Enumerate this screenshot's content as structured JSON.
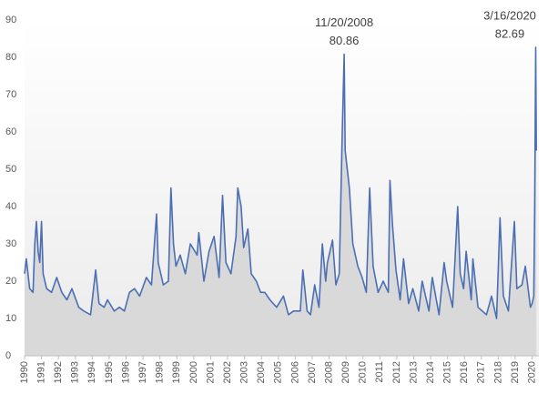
{
  "chart_data": {
    "type": "line",
    "x": [
      1990.0,
      1990.1,
      1990.3,
      1990.5,
      1990.6,
      1990.7,
      1990.8,
      1990.9,
      1991.0,
      1991.1,
      1991.3,
      1991.6,
      1991.9,
      1992.2,
      1992.5,
      1992.8,
      1993.2,
      1993.5,
      1993.9,
      1994.2,
      1994.4,
      1994.7,
      1994.9,
      1995.3,
      1995.6,
      1995.9,
      1996.2,
      1996.5,
      1996.8,
      1997.2,
      1997.5,
      1997.8,
      1997.9,
      1998.2,
      1998.5,
      1998.65,
      1998.8,
      1998.95,
      1999.2,
      1999.5,
      1999.8,
      2000.2,
      2000.3,
      2000.6,
      2000.9,
      2001.2,
      2001.5,
      2001.7,
      2001.9,
      2002.2,
      2002.5,
      2002.6,
      2002.8,
      2002.95,
      2003.2,
      2003.4,
      2003.7,
      2003.95,
      2004.2,
      2004.5,
      2004.9,
      2005.3,
      2005.6,
      2005.9,
      2006.3,
      2006.45,
      2006.7,
      2006.9,
      2007.15,
      2007.4,
      2007.6,
      2007.8,
      2007.9,
      2008.2,
      2008.4,
      2008.6,
      2008.78,
      2008.89,
      2008.95,
      2009.2,
      2009.4,
      2009.7,
      2009.95,
      2010.2,
      2010.4,
      2010.6,
      2010.9,
      2011.2,
      2011.5,
      2011.6,
      2011.75,
      2011.95,
      2012.2,
      2012.4,
      2012.7,
      2012.95,
      2013.3,
      2013.5,
      2013.9,
      2014.1,
      2014.5,
      2014.8,
      2014.95,
      2015.3,
      2015.6,
      2015.75,
      2015.95,
      2016.1,
      2016.4,
      2016.5,
      2016.8,
      2017.3,
      2017.6,
      2017.9,
      2018.1,
      2018.3,
      2018.6,
      2018.95,
      2019.1,
      2019.4,
      2019.6,
      2019.9,
      2020.0,
      2020.1,
      2020.15,
      2020.21,
      2020.25
    ],
    "series": [
      {
        "color": "#4a6fb5",
        "values": [
          22,
          26,
          18,
          17,
          30,
          36,
          28,
          25,
          36,
          22,
          18,
          17,
          21,
          17,
          15,
          18,
          13,
          12,
          11,
          23,
          14,
          13,
          15,
          12,
          13,
          12,
          17,
          18,
          16,
          21,
          19,
          38,
          25,
          19,
          20,
          45,
          30,
          24,
          27,
          22,
          30,
          27,
          33,
          20,
          28,
          32,
          21,
          43,
          25,
          22,
          32,
          45,
          40,
          29,
          34,
          22,
          20,
          17,
          17,
          15,
          13,
          16,
          11,
          12,
          12,
          23,
          12,
          11,
          19,
          13,
          30,
          20,
          25,
          31,
          19,
          22,
          60,
          80.86,
          55,
          45,
          30,
          24,
          21,
          17,
          45,
          24,
          17,
          20,
          17,
          47,
          35,
          23,
          15,
          26,
          14,
          18,
          12,
          20,
          12,
          21,
          11,
          25,
          20,
          13,
          40,
          22,
          18,
          28,
          15,
          26,
          13,
          11,
          16,
          10,
          37,
          16,
          12,
          36,
          18,
          19,
          24,
          13,
          14,
          16,
          40,
          82.69,
          55
        ]
      }
    ],
    "xlim": [
      1990,
      2020.4
    ],
    "xticks": [
      1990,
      1991,
      1992,
      1993,
      1994,
      1995,
      1996,
      1997,
      1998,
      1999,
      2000,
      2001,
      2002,
      2003,
      2004,
      2005,
      2006,
      2007,
      2008,
      2009,
      2010,
      2011,
      2012,
      2013,
      2014,
      2015,
      2016,
      2017,
      2018,
      2019,
      2020
    ],
    "ylim": [
      0,
      90
    ],
    "yticks": [
      0,
      10,
      20,
      30,
      40,
      50,
      60,
      70,
      80,
      90
    ],
    "annotations": [
      {
        "text": "11/20/2008",
        "value": 80.86
      },
      {
        "text": "3/16/2020",
        "value": 82.69
      }
    ]
  }
}
